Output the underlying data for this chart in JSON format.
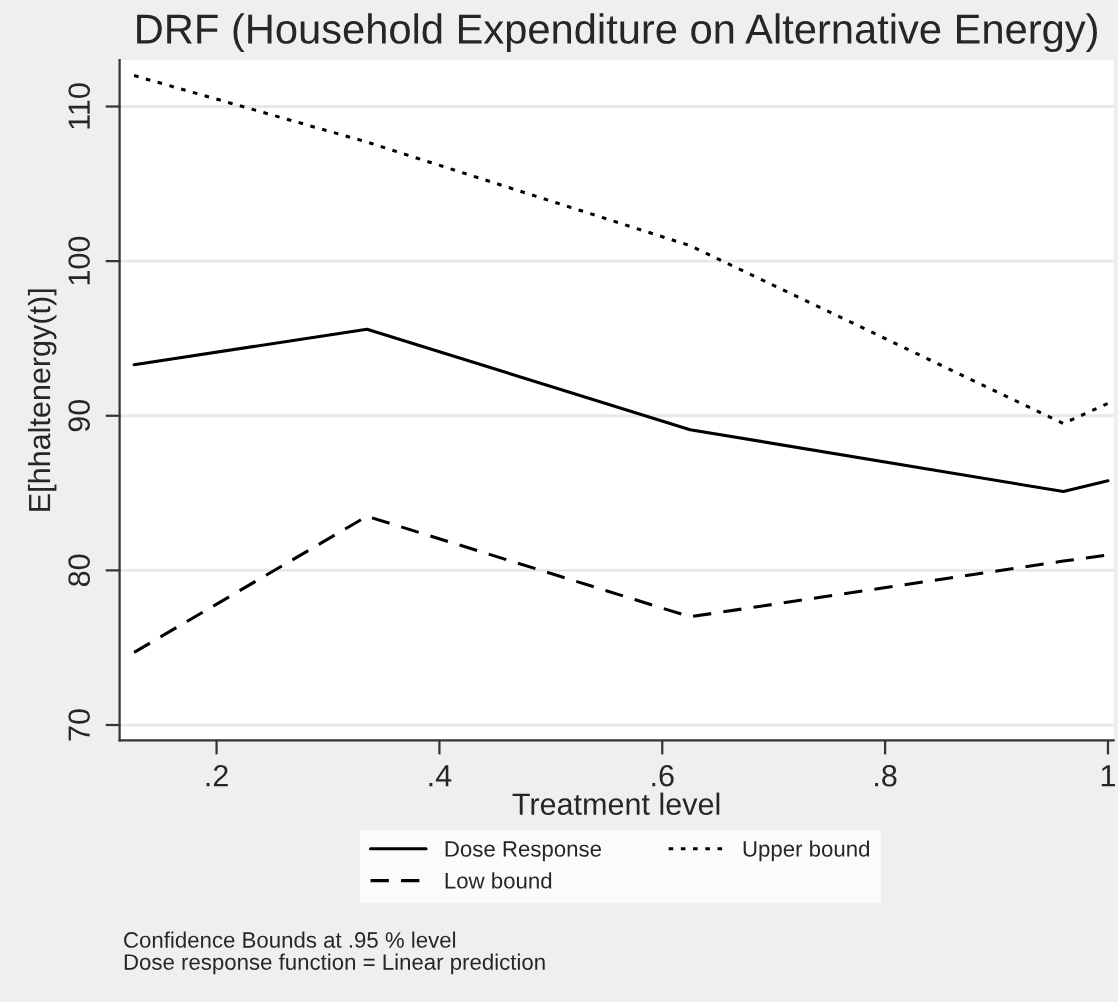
{
  "chart_data": {
    "type": "line",
    "title": "DRF (Household Expenditure on Alternative Energy)",
    "xlabel": "Treatment level",
    "ylabel": "E[hhaltenergy(t)]",
    "x": [
      0.126,
      0.335,
      0.625,
      0.96,
      1.0
    ],
    "series": [
      {
        "name": "Dose Response",
        "color": "#000000",
        "line_style": "solid",
        "values": [
          93.3,
          95.6,
          89.1,
          85.1,
          85.8
        ]
      },
      {
        "name": "Low bound",
        "color": "#000000",
        "line_style": "dashed",
        "values": [
          74.7,
          83.5,
          77.0,
          80.6,
          81.0
        ]
      },
      {
        "name": "Upper bound",
        "color": "#000000",
        "line_style": "dotted",
        "values": [
          112.0,
          107.7,
          101.0,
          89.5,
          90.8
        ]
      }
    ],
    "xlim": [
      0.113,
      1.005
    ],
    "ylim": [
      69,
      113
    ],
    "xticks": [
      {
        "value": 0.2,
        "label": ".2"
      },
      {
        "value": 0.4,
        "label": ".4"
      },
      {
        "value": 0.6,
        "label": ".6"
      },
      {
        "value": 0.8,
        "label": ".8"
      },
      {
        "value": 1,
        "label": "1"
      }
    ],
    "yticks": [
      70,
      80,
      90,
      100,
      110
    ],
    "grid": "y",
    "legend": "bottom",
    "marker": "none",
    "annotations": [
      "Confidence Bounds at .95 % level",
      "Dose response function = Linear prediction"
    ]
  }
}
